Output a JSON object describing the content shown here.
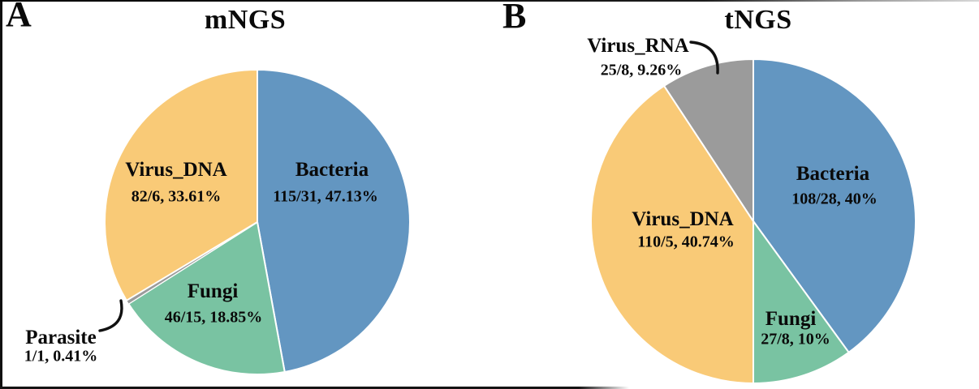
{
  "figure": {
    "description": "Two pie charts comparing pathogen detection composition",
    "panel_letters": [
      "A",
      "B"
    ]
  },
  "chart_data": [
    {
      "type": "pie",
      "panel_letter": "A",
      "title": "mNGS",
      "order": "clockwise-from-top",
      "legend_position": "labels-on-slices",
      "slices": [
        {
          "label": "Bacteria",
          "count": "115/31",
          "percent": 47.13,
          "value_text": "115/31, 47.13%",
          "color": "#6396c1"
        },
        {
          "label": "Fungi",
          "count": "46/15",
          "percent": 18.85,
          "value_text": "46/15, 18.85%",
          "color": "#79c3a2"
        },
        {
          "label": "Parasite",
          "count": "1/1",
          "percent": 0.41,
          "value_text": "1/1, 0.41%",
          "color": "#9b9b9b"
        },
        {
          "label": "Virus_DNA",
          "count": "82/6",
          "percent": 33.61,
          "value_text": "82/6, 33.61%",
          "color": "#f9ca77"
        }
      ]
    },
    {
      "type": "pie",
      "panel_letter": "B",
      "title": "tNGS",
      "order": "clockwise-from-top",
      "legend_position": "labels-on-slices",
      "slices": [
        {
          "label": "Bacteria",
          "count": "108/28",
          "percent": 40.0,
          "value_text": "108/28, 40%",
          "color": "#6396c1"
        },
        {
          "label": "Fungi",
          "count": "27/8",
          "percent": 10.0,
          "value_text": "27/8, 10%",
          "color": "#79c3a2"
        },
        {
          "label": "Virus_DNA",
          "count": "110/5",
          "percent": 40.74,
          "value_text": "110/5, 40.74%",
          "color": "#f9ca77"
        },
        {
          "label": "Virus_RNA",
          "count": "25/8",
          "percent": 9.26,
          "value_text": "25/8, 9.26%",
          "color": "#9b9b9b"
        }
      ]
    }
  ]
}
